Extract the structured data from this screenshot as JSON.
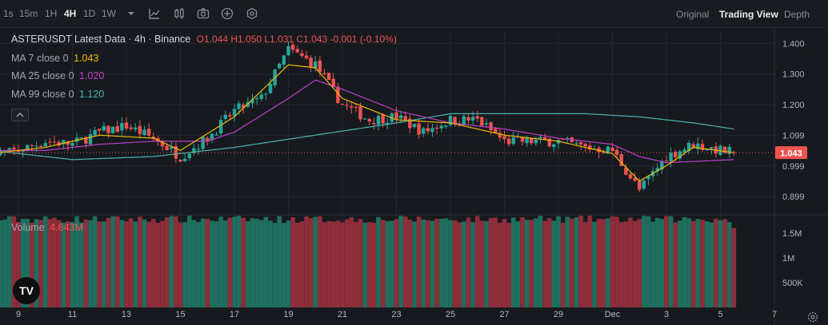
{
  "toolbar": {
    "timeframes": [
      "1s",
      "15m",
      "1H",
      "4H",
      "1D",
      "1W"
    ],
    "active_timeframe": "4H",
    "icons": [
      "chevron-down-icon",
      "indicator-icon",
      "candle-style-icon",
      "camera-icon",
      "add-icon",
      "settings-hex-icon"
    ],
    "views": [
      "Original",
      "Trading View",
      "Depth"
    ],
    "active_view": "Trading View"
  },
  "legend": {
    "title": "ASTERUSDT Latest Data · 4h · Binance",
    "ohlc": "O1.044 H1.050 L1.031 C1.043 -0.001 (-0.10%)",
    "ma7_label": "MA 7 close 0",
    "ma7_value": "1.043",
    "ma25_label": "MA 25 close 0",
    "ma25_value": "1.020",
    "ma99_label": "MA 99 close 0",
    "ma99_value": "1.120",
    "volume_label": "Volume",
    "volume_value": "4.643M"
  },
  "colors": {
    "up": "#26a69a",
    "down": "#ef5350",
    "ma7": "#f0b90b",
    "ma25": "#c03fc9",
    "ma99": "#4bb4b2",
    "price_tag": "#ef5350",
    "background": "#161a1e",
    "grid": "#23272e"
  },
  "price_badge": "1.043",
  "logo_text": "TV",
  "chart_data": {
    "type": "candlestick",
    "symbol": "ASTERUSDT",
    "interval": "4h",
    "exchange": "Binance",
    "y_ticks": [
      "1.400",
      "1.300",
      "1.200",
      "1.099",
      "0.999",
      "0.899"
    ],
    "y_tick_values": [
      1.4,
      1.3,
      1.2,
      1.099,
      0.999,
      0.899
    ],
    "ylim": [
      0.85,
      1.44
    ],
    "volume_ticks": [
      "1.5M",
      "1M",
      "500K"
    ],
    "volume_tick_values": [
      1500000,
      1000000,
      500000
    ],
    "volume_max": 1850000,
    "x_ticks": [
      "9",
      "11",
      "13",
      "15",
      "17",
      "19",
      "21",
      "23",
      "25",
      "27",
      "29",
      "Dec",
      "3",
      "5",
      "7"
    ],
    "x_tick_dates": [
      "2024-11-09",
      "2024-11-11",
      "2024-11-13",
      "2024-11-15",
      "2024-11-17",
      "2024-11-19",
      "2024-11-21",
      "2024-11-23",
      "2024-11-25",
      "2024-11-27",
      "2024-11-29",
      "2024-12-01",
      "2024-12-03",
      "2024-12-05",
      "2024-12-07"
    ],
    "close_anchors": [
      [
        "2024-11-08",
        1.03
      ],
      [
        "2024-11-09",
        1.05
      ],
      [
        "2024-11-10",
        1.08
      ],
      [
        "2024-11-11",
        1.07
      ],
      [
        "2024-11-12",
        1.11
      ],
      [
        "2024-11-13",
        1.13
      ],
      [
        "2024-11-14",
        1.09
      ],
      [
        "2024-11-15",
        1.03
      ],
      [
        "2024-11-16",
        1.09
      ],
      [
        "2024-11-17",
        1.18
      ],
      [
        "2024-11-18",
        1.22
      ],
      [
        "2024-11-19",
        1.38
      ],
      [
        "2024-11-20",
        1.33
      ],
      [
        "2024-11-21",
        1.2
      ],
      [
        "2024-11-22",
        1.15
      ],
      [
        "2024-11-23",
        1.16
      ],
      [
        "2024-11-24",
        1.11
      ],
      [
        "2024-11-25",
        1.15
      ],
      [
        "2024-11-26",
        1.15
      ],
      [
        "2024-11-27",
        1.08
      ],
      [
        "2024-11-28",
        1.08
      ],
      [
        "2024-11-29",
        1.08
      ],
      [
        "2024-11-30",
        1.06
      ],
      [
        "2024-12-01",
        1.05
      ],
      [
        "2024-12-02",
        0.92
      ],
      [
        "2024-12-03",
        1.03
      ],
      [
        "2024-12-04",
        1.07
      ],
      [
        "2024-12-05",
        1.05
      ],
      [
        "2024-12-05T12:00",
        1.043
      ]
    ],
    "ma7_anchors": [
      [
        "2024-11-08",
        1.04
      ],
      [
        "2024-11-10",
        1.06
      ],
      [
        "2024-11-12",
        1.1
      ],
      [
        "2024-11-14",
        1.09
      ],
      [
        "2024-11-15",
        1.05
      ],
      [
        "2024-11-17",
        1.16
      ],
      [
        "2024-11-19",
        1.33
      ],
      [
        "2024-11-20",
        1.32
      ],
      [
        "2024-11-21",
        1.22
      ],
      [
        "2024-11-23",
        1.15
      ],
      [
        "2024-11-25",
        1.14
      ],
      [
        "2024-11-27",
        1.1
      ],
      [
        "2024-11-29",
        1.08
      ],
      [
        "2024-12-01",
        1.04
      ],
      [
        "2024-12-02",
        0.95
      ],
      [
        "2024-12-03",
        1.0
      ],
      [
        "2024-12-04",
        1.06
      ],
      [
        "2024-12-05T12:00",
        1.043
      ]
    ],
    "ma25_anchors": [
      [
        "2024-11-08",
        1.05
      ],
      [
        "2024-11-10",
        1.05
      ],
      [
        "2024-11-12",
        1.07
      ],
      [
        "2024-11-14",
        1.08
      ],
      [
        "2024-11-16",
        1.08
      ],
      [
        "2024-11-17",
        1.11
      ],
      [
        "2024-11-19",
        1.22
      ],
      [
        "2024-11-20",
        1.28
      ],
      [
        "2024-11-21",
        1.25
      ],
      [
        "2024-11-23",
        1.18
      ],
      [
        "2024-11-25",
        1.14
      ],
      [
        "2024-11-27",
        1.12
      ],
      [
        "2024-11-29",
        1.09
      ],
      [
        "2024-12-01",
        1.07
      ],
      [
        "2024-12-02",
        1.03
      ],
      [
        "2024-12-03",
        1.01
      ],
      [
        "2024-12-05T12:00",
        1.02
      ]
    ],
    "ma99_anchors": [
      [
        "2024-11-08",
        1.05
      ],
      [
        "2024-11-11",
        1.02
      ],
      [
        "2024-11-14",
        1.03
      ],
      [
        "2024-11-17",
        1.06
      ],
      [
        "2024-11-20",
        1.1
      ],
      [
        "2024-11-23",
        1.14
      ],
      [
        "2024-11-25",
        1.17
      ],
      [
        "2024-11-27",
        1.17
      ],
      [
        "2024-11-30",
        1.17
      ],
      [
        "2024-12-02",
        1.16
      ],
      [
        "2024-12-04",
        1.14
      ],
      [
        "2024-12-05T12:00",
        1.12
      ]
    ],
    "last_price": 1.043,
    "last_candle": {
      "open": 1.044,
      "high": 1.05,
      "low": 1.031,
      "close": 1.043
    }
  }
}
